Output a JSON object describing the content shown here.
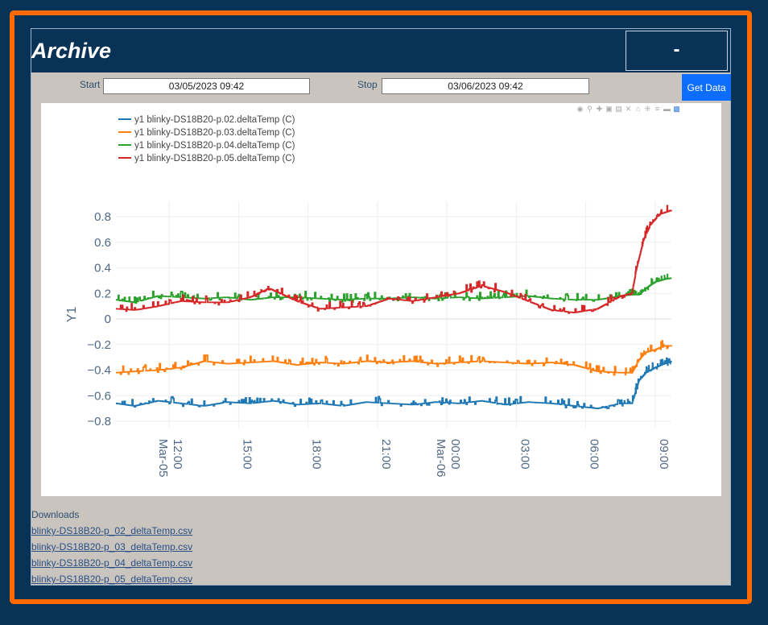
{
  "app": {
    "title": "Archive",
    "status": "-"
  },
  "controls": {
    "start_label": "Start",
    "start_value": "03/05/2023 09:42",
    "stop_label": "Stop",
    "stop_value": "03/06/2023 09:42",
    "get_data_label": "Get Data"
  },
  "modebar": {
    "icons": [
      "camera-icon",
      "zoom-icon",
      "pan-icon",
      "zoom-in-icon",
      "zoom-out-icon",
      "autoscale-icon",
      "home-icon",
      "spike-icon",
      "compare-icon",
      "closest-icon",
      "plotly-logo-icon"
    ]
  },
  "chart_data": {
    "type": "line",
    "ylabel": "Y1",
    "xlabel": "",
    "ylim": [
      -0.85,
      0.92
    ],
    "y_ticks": [
      0.8,
      0.6,
      0.4,
      0.2,
      0,
      -0.2,
      -0.4,
      -0.6,
      -0.8
    ],
    "y_tick_labels": [
      "0.8",
      "0.6",
      "0.4",
      "0.2",
      "0",
      "−0.2",
      "−0.4",
      "−0.6",
      "−0.8"
    ],
    "x_range_hours": [
      9.7,
      33.7
    ],
    "x_ticks": [
      12,
      15,
      18,
      21,
      24,
      27,
      30,
      33
    ],
    "x_tick_labels": [
      "12:00\nMar-05",
      "15:00",
      "18:00",
      "21:00",
      "00:00\nMar-06",
      "03:00",
      "06:00",
      "09:00"
    ],
    "grid": true,
    "legend_position": "top-left",
    "series": [
      {
        "name": "y1 blinky-DS18B20-p.02.deltaTemp (C)",
        "color": "#1f77b4",
        "x": [
          9.7,
          10.5,
          11.5,
          12.5,
          13.5,
          14.5,
          15.5,
          16.5,
          17.5,
          18.5,
          19.5,
          20.5,
          21.5,
          22.5,
          23.5,
          24.5,
          25.5,
          26.5,
          27.5,
          28.5,
          29.5,
          30.5,
          31.5,
          32.0,
          32.3,
          32.6,
          33.0,
          33.4,
          33.7
        ],
        "values": [
          -0.66,
          -0.68,
          -0.64,
          -0.66,
          -0.68,
          -0.65,
          -0.66,
          -0.64,
          -0.67,
          -0.66,
          -0.68,
          -0.65,
          -0.66,
          -0.67,
          -0.65,
          -0.66,
          -0.64,
          -0.67,
          -0.65,
          -0.66,
          -0.68,
          -0.7,
          -0.66,
          -0.66,
          -0.48,
          -0.42,
          -0.38,
          -0.35,
          -0.33
        ]
      },
      {
        "name": "y1 blinky-DS18B20-p.03.deltaTemp (C)",
        "color": "#ff7f0e",
        "x": [
          9.7,
          10.5,
          11.5,
          12.5,
          13.5,
          14.5,
          15.5,
          16.5,
          17.5,
          18.5,
          19.5,
          20.5,
          21.5,
          22.5,
          23.5,
          24.5,
          25.5,
          26.5,
          27.5,
          28.5,
          29.5,
          30.5,
          31.5,
          32.0,
          32.3,
          32.6,
          33.0,
          33.4,
          33.7
        ],
        "values": [
          -0.42,
          -0.41,
          -0.4,
          -0.38,
          -0.33,
          -0.35,
          -0.34,
          -0.33,
          -0.36,
          -0.34,
          -0.35,
          -0.33,
          -0.34,
          -0.33,
          -0.35,
          -0.34,
          -0.33,
          -0.34,
          -0.35,
          -0.34,
          -0.36,
          -0.41,
          -0.42,
          -0.42,
          -0.32,
          -0.26,
          -0.24,
          -0.21,
          -0.21
        ]
      },
      {
        "name": "y1 blinky-DS18B20-p.04.deltaTemp (C)",
        "color": "#2ca02c",
        "x": [
          9.7,
          10.5,
          11.5,
          12.5,
          13.5,
          14.5,
          15.5,
          16.5,
          17.5,
          18.5,
          19.5,
          20.5,
          21.5,
          22.5,
          23.5,
          24.5,
          25.5,
          26.5,
          27.5,
          28.5,
          29.5,
          30.5,
          31.5,
          32.0,
          32.3,
          32.6,
          33.0,
          33.4,
          33.7
        ],
        "values": [
          0.15,
          0.13,
          0.18,
          0.17,
          0.16,
          0.17,
          0.15,
          0.17,
          0.17,
          0.16,
          0.15,
          0.16,
          0.16,
          0.17,
          0.16,
          0.17,
          0.16,
          0.17,
          0.18,
          0.16,
          0.15,
          0.15,
          0.18,
          0.19,
          0.19,
          0.24,
          0.29,
          0.31,
          0.32
        ]
      },
      {
        "name": "y1 blinky-DS18B20-p.05.deltaTemp (C)",
        "color": "#d62728",
        "x": [
          9.7,
          10.5,
          11.5,
          12.5,
          13.5,
          14.5,
          15.5,
          16.3,
          17.5,
          18.5,
          19.5,
          20.5,
          21.5,
          22.5,
          23.5,
          24.5,
          25.5,
          26.5,
          27.5,
          28.5,
          29.5,
          30.5,
          31.5,
          32.0,
          32.2,
          32.5,
          32.8,
          33.2,
          33.7
        ],
        "values": [
          0.08,
          0.07,
          0.1,
          0.14,
          0.13,
          0.13,
          0.17,
          0.24,
          0.14,
          0.08,
          0.09,
          0.1,
          0.16,
          0.14,
          0.17,
          0.2,
          0.26,
          0.21,
          0.14,
          0.07,
          0.05,
          0.08,
          0.18,
          0.2,
          0.4,
          0.62,
          0.74,
          0.82,
          0.85
        ]
      }
    ]
  },
  "downloads": {
    "label": "Downloads",
    "files": [
      "blinky-DS18B20-p_02_deltaTemp.csv",
      "blinky-DS18B20-p_03_deltaTemp.csv",
      "blinky-DS18B20-p_04_deltaTemp.csv",
      "blinky-DS18B20-p_05_deltaTemp.csv"
    ]
  }
}
